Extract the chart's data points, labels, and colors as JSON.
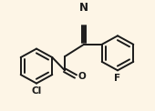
{
  "background_color": "#fdf5e6",
  "line_color": "#1a1a1a",
  "line_width": 1.4,
  "font_size": 7.5,
  "N_label": "N",
  "O_label": "O",
  "Cl_label": "Cl",
  "F_label": "F"
}
